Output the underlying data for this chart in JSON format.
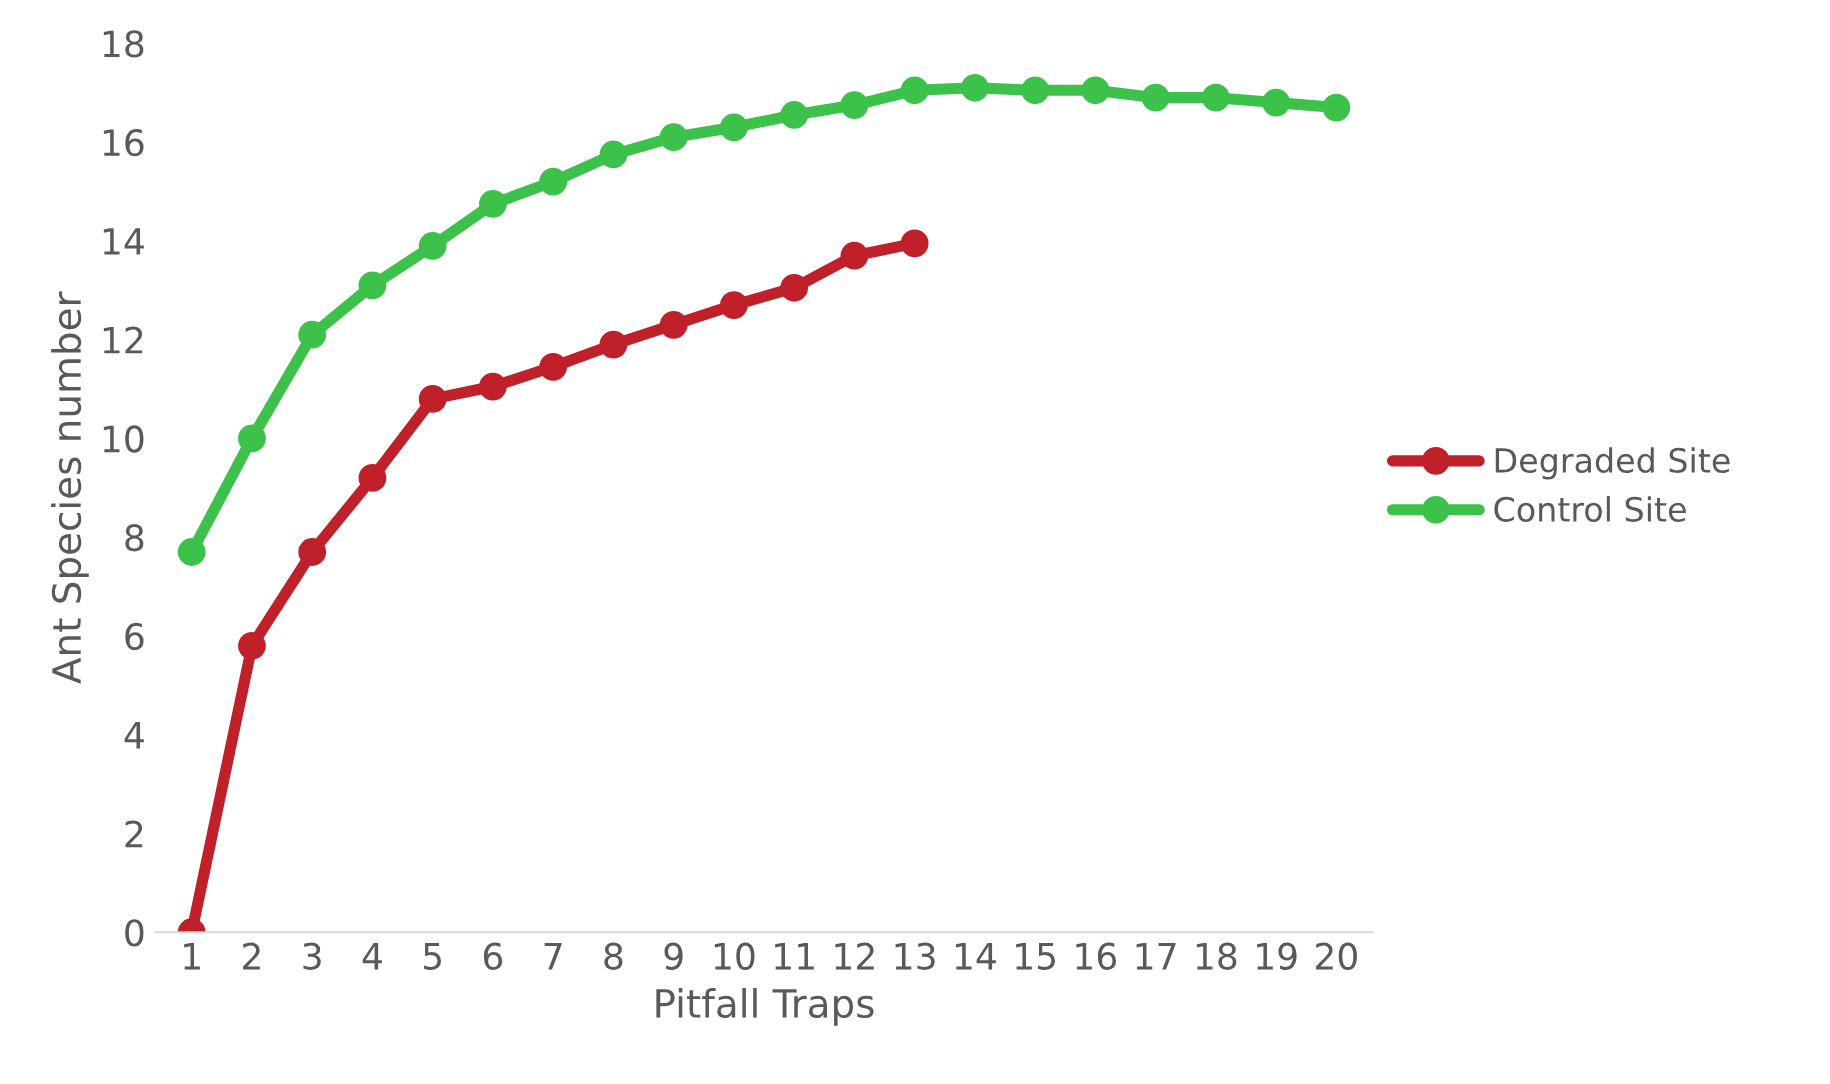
{
  "chart_data": {
    "type": "line",
    "xlabel": "Pitfall Traps",
    "ylabel": "Ant Species number",
    "categories": [
      "1",
      "2",
      "3",
      "4",
      "5",
      "6",
      "7",
      "8",
      "9",
      "10",
      "11",
      "12",
      "13",
      "14",
      "15",
      "16",
      "17",
      "18",
      "19",
      "20"
    ],
    "series": [
      {
        "name": "Degraded Site",
        "color": "#c0202a",
        "values": [
          0,
          5.8,
          7.7,
          9.2,
          10.8,
          11.05,
          11.45,
          11.9,
          12.3,
          12.7,
          13.05,
          13.7,
          13.95,
          null,
          null,
          null,
          null,
          null,
          null,
          null
        ]
      },
      {
        "name": "Control Site",
        "color": "#3cc24a",
        "values": [
          7.7,
          10.0,
          12.1,
          13.1,
          13.9,
          14.75,
          15.2,
          15.75,
          16.1,
          16.3,
          16.55,
          16.75,
          17.05,
          17.1,
          17.05,
          17.05,
          16.9,
          16.9,
          16.8,
          16.7
        ]
      }
    ],
    "ylim": [
      0,
      18
    ],
    "yticks": [
      0,
      2,
      4,
      6,
      8,
      10,
      12,
      14,
      16,
      18
    ],
    "grid": false,
    "legend": "right",
    "marker": "circle",
    "line_style": "solid"
  }
}
